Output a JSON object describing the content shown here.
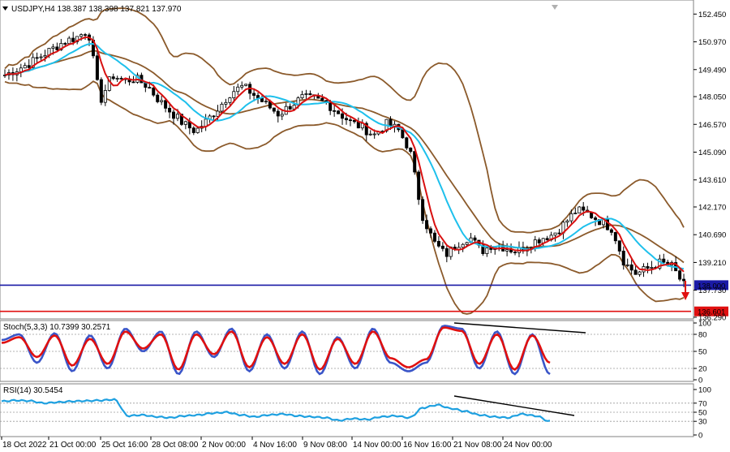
{
  "chart_data": [
    {
      "type": "candlestick",
      "title": "USDJPY,H4  138.387 138.398 137.821 137.970",
      "ylim": [
        136.2,
        153.2
      ],
      "y_ticks": [
        "152.450",
        "150.970",
        "149.490",
        "148.050",
        "146.570",
        "145.090",
        "143.610",
        "142.170",
        "140.690",
        "139.210",
        "137.730",
        "136.290"
      ],
      "x_ticks": [
        "18 Oct 2022",
        "21 Oct 00:00",
        "25 Oct 16:00",
        "28 Oct 08:00",
        "2 Nov 00:00",
        "4 Nov 16:00",
        "9 Nov 08:00",
        "14 Nov 00:00",
        "16 Nov 16:00",
        "21 Nov 08:00",
        "24 Nov 00:00"
      ],
      "price_levels": [
        {
          "value": 138.0,
          "label": "138.000",
          "color": "#1a1aa6"
        },
        {
          "value": 136.601,
          "label": "136.601",
          "color": "#e01010"
        }
      ],
      "close_path": [
        149.2,
        149.5,
        149.8,
        150.2,
        150.6,
        151.0,
        151.2,
        151.6,
        147.8,
        149.2,
        148.9,
        149.0,
        148.6,
        147.8,
        147.2,
        146.6,
        146.2,
        146.8,
        147.5,
        148.3,
        148.6,
        148.1,
        147.6,
        147.1,
        147.6,
        148.0,
        147.9,
        147.7,
        147.2,
        146.7,
        146.4,
        146.0,
        146.6,
        146.3,
        145.2,
        141.8,
        140.3,
        139.6,
        140.2,
        140.6,
        139.8,
        140.2,
        140.0,
        139.8,
        140.2,
        140.5,
        140.7,
        141.3,
        142.0,
        141.8,
        141.4,
        141.0,
        139.2,
        138.6,
        138.9,
        139.2,
        139.0,
        138.0
      ],
      "indicators": [
        "Bollinger Bands",
        "Moving Average (red)",
        "Moving Average (blue)"
      ]
    },
    {
      "type": "line",
      "title": "Stoch(5,3,3) 10.7399 30.2571",
      "ylim": [
        0,
        100
      ],
      "y_ticks": [
        "100",
        "80",
        "50",
        "20",
        "0"
      ],
      "series": [
        {
          "name": "Stoch main",
          "color": "#3a55c8",
          "values": [
            70,
            80,
            30,
            82,
            15,
            78,
            20,
            90,
            50,
            85,
            10,
            85,
            40,
            90,
            15,
            80,
            20,
            85,
            10,
            75,
            20,
            90,
            30,
            15,
            30,
            95,
            90,
            20,
            85,
            10,
            80,
            10
          ]
        },
        {
          "name": "Stoch signal",
          "color": "#e01010",
          "values": [
            65,
            75,
            40,
            78,
            25,
            72,
            28,
            85,
            55,
            80,
            18,
            80,
            45,
            85,
            22,
            75,
            28,
            80,
            18,
            72,
            28,
            85,
            38,
            22,
            36,
            92,
            86,
            28,
            80,
            18,
            78,
            30
          ]
        }
      ]
    },
    {
      "type": "line",
      "title": "RSI(14) 30.5454",
      "ylim": [
        0,
        100
      ],
      "y_ticks": [
        "100",
        "70",
        "50",
        "30",
        "0"
      ],
      "series": [
        {
          "name": "RSI",
          "color": "#1ea0e0",
          "values": [
            74,
            76,
            75,
            70,
            72,
            74,
            75,
            76,
            78,
            42,
            44,
            40,
            38,
            42,
            44,
            48,
            50,
            44,
            40,
            44,
            46,
            42,
            40,
            38,
            32,
            36,
            34,
            40,
            42,
            38,
            60,
            66,
            58,
            52,
            44,
            40,
            38,
            46,
            42,
            30
          ]
        }
      ]
    }
  ]
}
